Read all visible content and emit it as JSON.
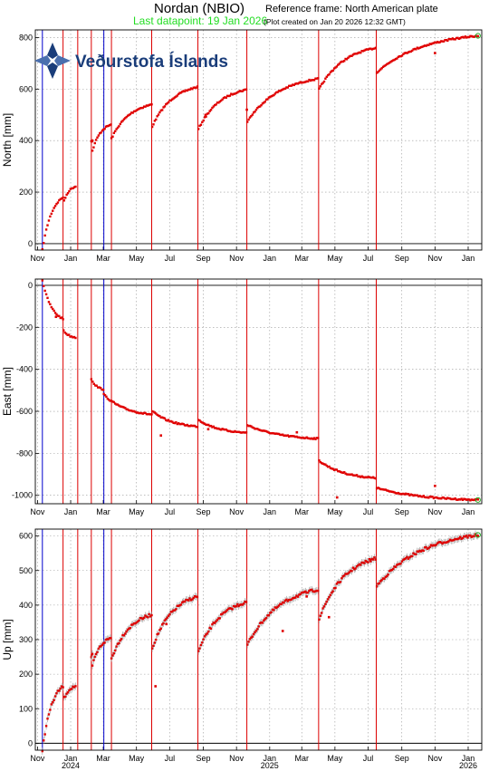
{
  "header": {
    "station": "Nordan (NBIO)",
    "reference_frame": "Reference frame: North American plate",
    "last_datapoint": "Last datapoint: 19 Jan 2026",
    "plot_created": "(Plot created on Jan 20 2026 12:32 GMT)"
  },
  "logo": {
    "text": "Veðurstofa Íslands",
    "icon": "vedurstofa-logo-icon"
  },
  "colors": {
    "data": "#e00000",
    "event_red": "#dd0000",
    "event_blue": "#0000cc",
    "grid": "#999999",
    "error": "#999999",
    "last_point": "#22aa22"
  },
  "chart_data": {
    "type": "scatter",
    "x_axis": {
      "month_ticks": [
        "Nov",
        "Jan",
        "Mar",
        "May",
        "Jul",
        "Sep",
        "Nov",
        "Jan",
        "Mar",
        "May",
        "Jul",
        "Sep",
        "Nov",
        "Jan"
      ],
      "years": [
        "2024",
        "2025",
        "2026"
      ]
    },
    "event_lines": {
      "red": [
        "2023-12-18",
        "2024-01-14",
        "2024-02-08",
        "2024-03-16",
        "2024-05-29",
        "2024-08-22",
        "2024-11-20",
        "2025-04-01",
        "2025-07-16"
      ],
      "blue": [
        "2023-11-10",
        "2024-03-02"
      ]
    },
    "last_point": {
      "date": "2026-01-19",
      "north": 807,
      "east": -1022,
      "up": 603
    },
    "panels": [
      {
        "name": "North",
        "ylabel": "North [mm]",
        "ylim": [
          -25,
          830
        ],
        "yticks": [
          0,
          200,
          400,
          600,
          800
        ],
        "segments": [
          {
            "start": "2023-11-10",
            "end": "2023-12-18",
            "from": -25,
            "to": 180
          },
          {
            "start": "2023-12-20",
            "end": "2024-01-10",
            "from": 165,
            "to": 222
          },
          {
            "start": "2024-02-08",
            "end": "2024-02-10",
            "from": 398,
            "to": 400
          },
          {
            "start": "2024-02-10",
            "end": "2024-03-15",
            "from": 360,
            "to": 462
          },
          {
            "start": "2024-03-16",
            "end": "2024-05-29",
            "from": 408,
            "to": 540
          },
          {
            "start": "2024-05-30",
            "end": "2024-08-21",
            "from": 455,
            "to": 608
          },
          {
            "start": "2024-08-23",
            "end": "2024-11-19",
            "from": 445,
            "to": 598
          },
          {
            "start": "2024-11-21",
            "end": "2025-03-31",
            "from": 475,
            "to": 640
          },
          {
            "start": "2025-04-02",
            "end": "2025-07-15",
            "from": 600,
            "to": 760
          },
          {
            "start": "2025-07-17",
            "end": "2026-01-19",
            "from": 665,
            "to": 807
          }
        ],
        "outliers": [
          {
            "date": "2024-09-05",
            "value": 500
          },
          {
            "date": "2025-11-01",
            "value": 740
          },
          {
            "date": "2024-11-20",
            "value": 520
          }
        ]
      },
      {
        "name": "East",
        "ylabel": "East [mm]",
        "ylim": [
          -1040,
          30
        ],
        "yticks": [
          0,
          -200,
          -400,
          -600,
          -800,
          -1000
        ],
        "segments": [
          {
            "start": "2023-11-10",
            "end": "2023-12-18",
            "from": 25,
            "to": -160
          },
          {
            "start": "2023-12-19",
            "end": "2024-01-10",
            "from": -215,
            "to": -248
          },
          {
            "start": "2024-02-08",
            "end": "2024-03-01",
            "from": -445,
            "to": -495
          },
          {
            "start": "2024-03-02",
            "end": "2024-05-29",
            "from": -520,
            "to": -615
          },
          {
            "start": "2024-05-30",
            "end": "2024-08-21",
            "from": -600,
            "to": -672
          },
          {
            "start": "2024-08-23",
            "end": "2024-11-19",
            "from": -640,
            "to": -702
          },
          {
            "start": "2024-11-21",
            "end": "2025-03-31",
            "from": -665,
            "to": -730
          },
          {
            "start": "2025-04-02",
            "end": "2025-07-15",
            "from": -835,
            "to": -918
          },
          {
            "start": "2025-07-17",
            "end": "2026-01-19",
            "from": -965,
            "to": -1022
          }
        ],
        "outliers": [
          {
            "date": "2023-12-05",
            "value": -150
          },
          {
            "date": "2024-06-15",
            "value": -715
          },
          {
            "date": "2024-09-10",
            "value": -685
          },
          {
            "date": "2025-02-20",
            "value": -700
          },
          {
            "date": "2025-05-05",
            "value": -1010
          },
          {
            "date": "2025-11-01",
            "value": -955
          }
        ]
      },
      {
        "name": "Up",
        "ylabel": "Up [mm]",
        "ylim": [
          -20,
          620
        ],
        "yticks": [
          0,
          100,
          200,
          300,
          400,
          500,
          600
        ],
        "segments": [
          {
            "start": "2023-11-10",
            "end": "2023-12-18",
            "from": -20,
            "to": 165
          },
          {
            "start": "2023-12-20",
            "end": "2024-01-10",
            "from": 130,
            "to": 165
          },
          {
            "start": "2024-02-08",
            "end": "2024-02-10",
            "from": 245,
            "to": 255
          },
          {
            "start": "2024-02-10",
            "end": "2024-03-15",
            "from": 225,
            "to": 305
          },
          {
            "start": "2024-03-16",
            "end": "2024-05-29",
            "from": 245,
            "to": 372
          },
          {
            "start": "2024-05-30",
            "end": "2024-08-21",
            "from": 275,
            "to": 425
          },
          {
            "start": "2024-08-23",
            "end": "2024-11-19",
            "from": 265,
            "to": 408
          },
          {
            "start": "2024-11-21",
            "end": "2025-03-31",
            "from": 285,
            "to": 445
          },
          {
            "start": "2025-04-02",
            "end": "2025-07-15",
            "from": 360,
            "to": 535
          },
          {
            "start": "2025-07-17",
            "end": "2026-01-19",
            "from": 455,
            "to": 603
          }
        ],
        "outliers": [
          {
            "date": "2024-06-05",
            "value": 165
          },
          {
            "date": "2024-06-25",
            "value": 345
          },
          {
            "date": "2025-01-25",
            "value": 325
          },
          {
            "date": "2025-03-10",
            "value": 425
          },
          {
            "date": "2025-04-20",
            "value": 365
          },
          {
            "date": "2025-07-05",
            "value": 530
          }
        ]
      }
    ]
  }
}
